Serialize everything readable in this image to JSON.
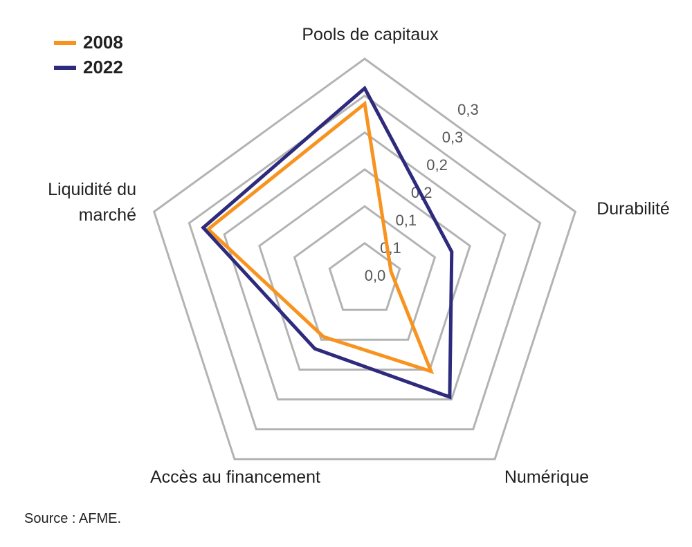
{
  "chart_data": {
    "type": "radar",
    "categories": [
      "Pools de capitaux",
      "Durabilité",
      "Numérique",
      "Accès au financement",
      "Liquidité du marché"
    ],
    "series": [
      {
        "name": "2008",
        "color": "#f7931e",
        "values": [
          0.239,
          0.0375,
          0.153,
          0.095,
          0.223
        ]
      },
      {
        "name": "2022",
        "color": "#2e2a7c",
        "values": [
          0.26,
          0.124,
          0.196,
          0.115,
          0.23
        ]
      }
    ],
    "rlim": [
      0,
      0.3
    ],
    "rticks": [
      {
        "value": 0,
        "label": "0,0"
      },
      {
        "value": 0.05,
        "label": "0,1"
      },
      {
        "value": 0.1,
        "label": "0,1"
      },
      {
        "value": 0.15,
        "label": "0,2"
      },
      {
        "value": 0.2,
        "label": "0,2"
      },
      {
        "value": 0.25,
        "label": "0,3"
      },
      {
        "value": 0.3,
        "label": "0,3"
      }
    ],
    "grid": true,
    "legend": "top-left",
    "source": "Source : AFME."
  }
}
